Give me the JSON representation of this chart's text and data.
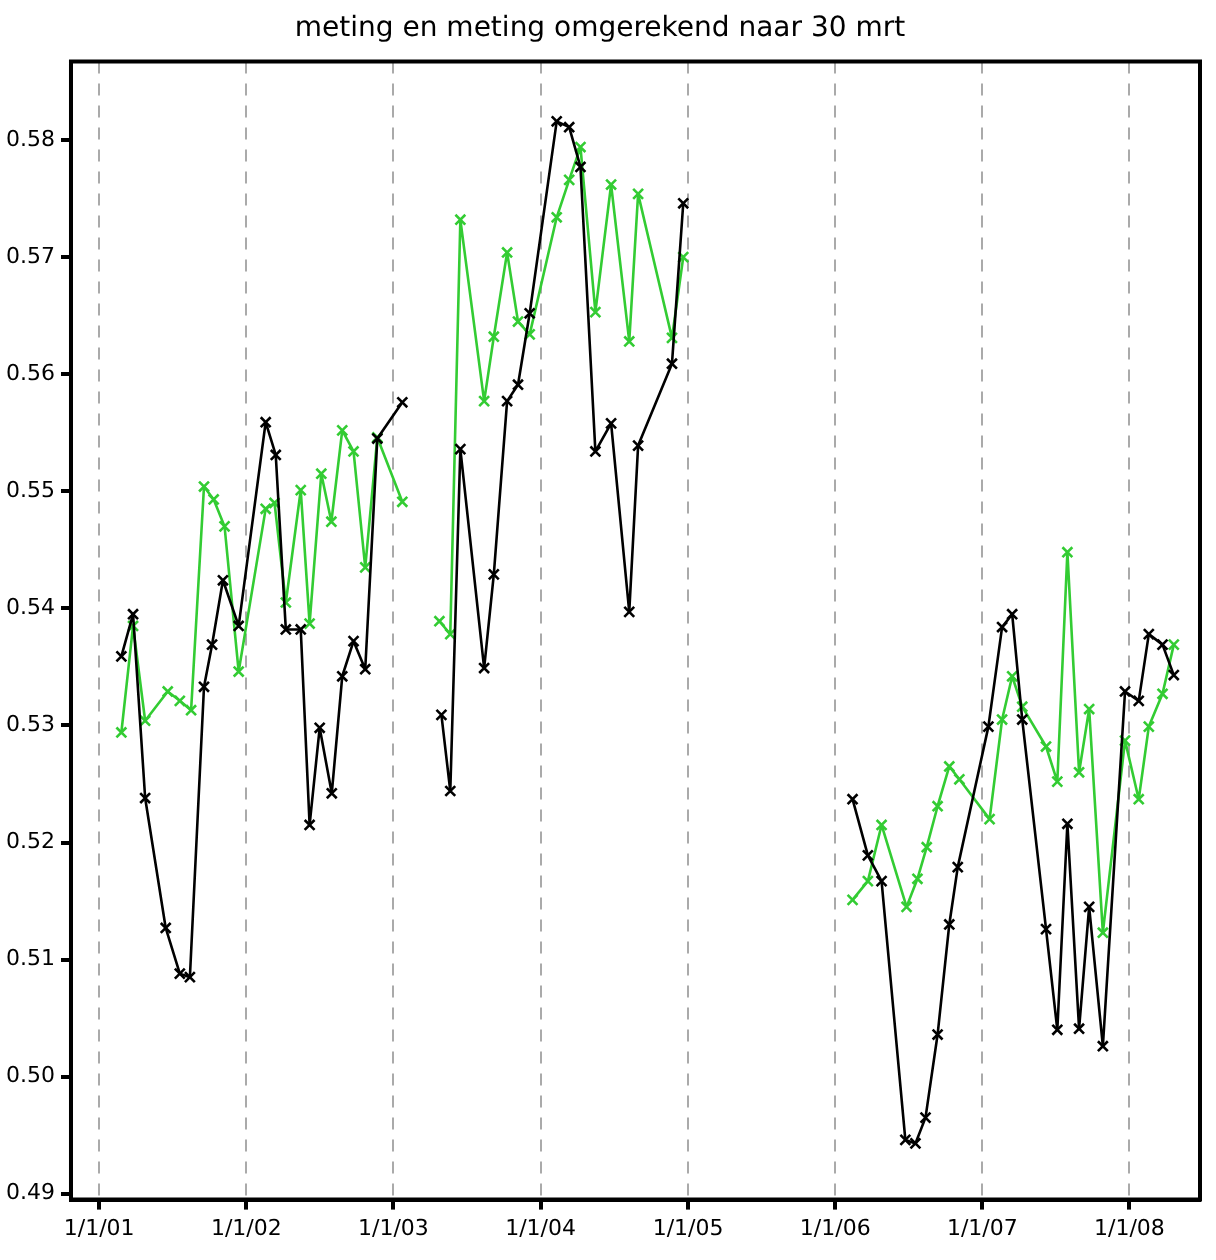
{
  "chart_data": {
    "type": "line",
    "title": "meting en meting omgerekend naar 30 mrt",
    "series": [
      {
        "color": "#000000",
        "x": [
          "2001-02-25",
          "2001-03-26",
          "2001-04-25",
          "2001-06-15",
          "2001-07-20",
          "2001-08-14",
          "2001-09-18",
          "2001-10-08",
          "2001-11-04",
          "2001-12-13",
          "2002-02-18",
          "2002-03-15",
          "2002-04-09",
          "2002-05-16",
          "2002-06-07",
          "2002-07-02",
          "2002-08-01",
          "2002-08-27",
          "2002-09-24",
          "2002-10-23",
          "2002-11-22",
          "2003-01-23",
          "2003-03-15",
          "2003-04-30",
          "2003-05-22",
          "2003-06-16",
          "2003-08-14",
          "2003-09-07",
          "2003-10-10",
          "2003-11-06",
          "2003-12-05",
          "2004-02-10",
          "2004-03-12",
          "2004-04-09",
          "2004-05-16",
          "2004-06-24",
          "2004-08-08",
          "2004-08-30",
          "2004-11-22",
          "2004-12-20",
          "2005-07-03",
          "2006-02-13",
          "2006-03-23",
          "2006-04-26",
          "2006-06-24",
          "2006-07-19",
          "2006-08-13",
          "2006-09-12",
          "2006-10-11",
          "2006-11-01",
          "2007-01-16",
          "2007-02-19",
          "2007-03-16",
          "2007-04-10",
          "2007-06-08",
          "2007-07-06",
          "2007-07-31",
          "2007-08-29",
          "2007-09-23",
          "2007-10-27",
          "2007-12-21",
          "2008-01-24",
          "2008-02-18",
          "2008-03-23",
          "2008-04-20"
        ],
        "values": [
          0.5359,
          0.5395,
          0.5238,
          0.5127,
          0.5088,
          0.5085,
          0.5333,
          0.5369,
          0.5424,
          0.5385,
          0.5559,
          0.5531,
          0.5382,
          0.5382,
          0.5215,
          0.5298,
          0.5242,
          0.5342,
          0.5372,
          0.5348,
          0.5545,
          0.5576,
          null,
          0.5309,
          0.5244,
          0.5536,
          0.5349,
          0.5429,
          0.5577,
          0.5591,
          0.5652,
          0.5816,
          0.5811,
          0.5777,
          0.5534,
          0.5558,
          0.5397,
          0.5539,
          0.5609,
          0.5746,
          null,
          0.5237,
          0.5189,
          0.5167,
          0.4946,
          0.4943,
          0.4965,
          0.5036,
          0.513,
          0.5179,
          0.5299,
          0.5384,
          0.5395,
          0.5305,
          0.5126,
          0.504,
          0.5216,
          0.5041,
          0.5145,
          0.5026,
          0.5329,
          0.5321,
          0.5378,
          0.5369,
          0.5343
        ]
      },
      {
        "color": "#33cc33",
        "x": [
          "2001-02-25",
          "2001-03-26",
          "2001-04-25",
          "2001-06-20",
          "2001-07-20",
          "2001-08-17",
          "2001-09-18",
          "2001-10-12",
          "2001-11-08",
          "2001-12-13",
          "2002-02-18",
          "2002-03-12",
          "2002-04-09",
          "2002-05-16",
          "2002-06-07",
          "2002-07-06",
          "2002-07-31",
          "2002-08-27",
          "2002-09-24",
          "2002-10-23",
          "2002-11-22",
          "2003-01-23",
          "2003-03-15",
          "2003-04-25",
          "2003-05-22",
          "2003-06-16",
          "2003-08-14",
          "2003-09-07",
          "2003-10-10",
          "2003-11-06",
          "2003-12-05",
          "2004-02-10",
          "2004-03-12",
          "2004-04-09",
          "2004-05-16",
          "2004-06-24",
          "2004-08-08",
          "2004-08-30",
          "2004-11-22",
          "2004-12-20",
          "2005-07-03",
          "2006-02-13",
          "2006-03-23",
          "2006-04-26",
          "2006-06-27",
          "2006-07-24",
          "2006-08-16",
          "2006-09-12",
          "2006-10-11",
          "2006-11-05",
          "2007-01-19",
          "2007-02-19",
          "2007-03-16",
          "2007-04-10",
          "2007-06-08",
          "2007-07-06",
          "2007-07-31",
          "2007-08-29",
          "2007-09-23",
          "2007-10-27",
          "2007-12-21",
          "2008-01-24",
          "2008-02-18",
          "2008-03-23",
          "2008-04-20"
        ],
        "values": [
          0.5294,
          0.5385,
          0.5304,
          0.5329,
          0.5321,
          0.5313,
          0.5504,
          0.5493,
          0.547,
          0.5346,
          0.5485,
          0.549,
          0.5405,
          0.5501,
          0.5387,
          0.5515,
          0.5474,
          0.5552,
          0.5534,
          0.5435,
          0.5546,
          0.5491,
          null,
          0.5389,
          0.5378,
          0.5732,
          0.5577,
          0.5632,
          0.5704,
          0.5645,
          0.5634,
          0.5734,
          0.5766,
          0.5794,
          0.5653,
          0.5762,
          0.5628,
          0.5754,
          0.5631,
          0.57,
          null,
          0.5151,
          0.5167,
          0.5215,
          0.5145,
          0.5169,
          0.5196,
          0.5231,
          0.5265,
          0.5254,
          0.522,
          0.5305,
          0.5342,
          0.5316,
          0.5282,
          0.5252,
          0.5448,
          0.526,
          0.5314,
          0.5123,
          0.5287,
          0.5237,
          0.5299,
          0.5327,
          0.5369
        ]
      }
    ],
    "xlim": [
      "2000-10-23",
      "2008-06-24"
    ],
    "xticks": [
      {
        "value": "2001-01-01",
        "label": "1/1/01"
      },
      {
        "value": "2002-01-01",
        "label": "1/1/02"
      },
      {
        "value": "2003-01-01",
        "label": "1/1/03"
      },
      {
        "value": "2004-01-01",
        "label": "1/1/04"
      },
      {
        "value": "2005-01-01",
        "label": "1/1/05"
      },
      {
        "value": "2006-01-01",
        "label": "1/1/06"
      },
      {
        "value": "2007-01-01",
        "label": "1/1/07"
      },
      {
        "value": "2008-01-01",
        "label": "1/1/08"
      }
    ],
    "ylim": [
      0.4895,
      0.5867
    ],
    "yticks": [
      0.49,
      {
        "value": 0.5,
        "label": "0.50"
      },
      0.51,
      0.52,
      0.53,
      0.54,
      0.55,
      0.56,
      0.57,
      0.58
    ],
    "grid": "x",
    "legend": false,
    "marker": "cross",
    "line_style": "solid"
  }
}
